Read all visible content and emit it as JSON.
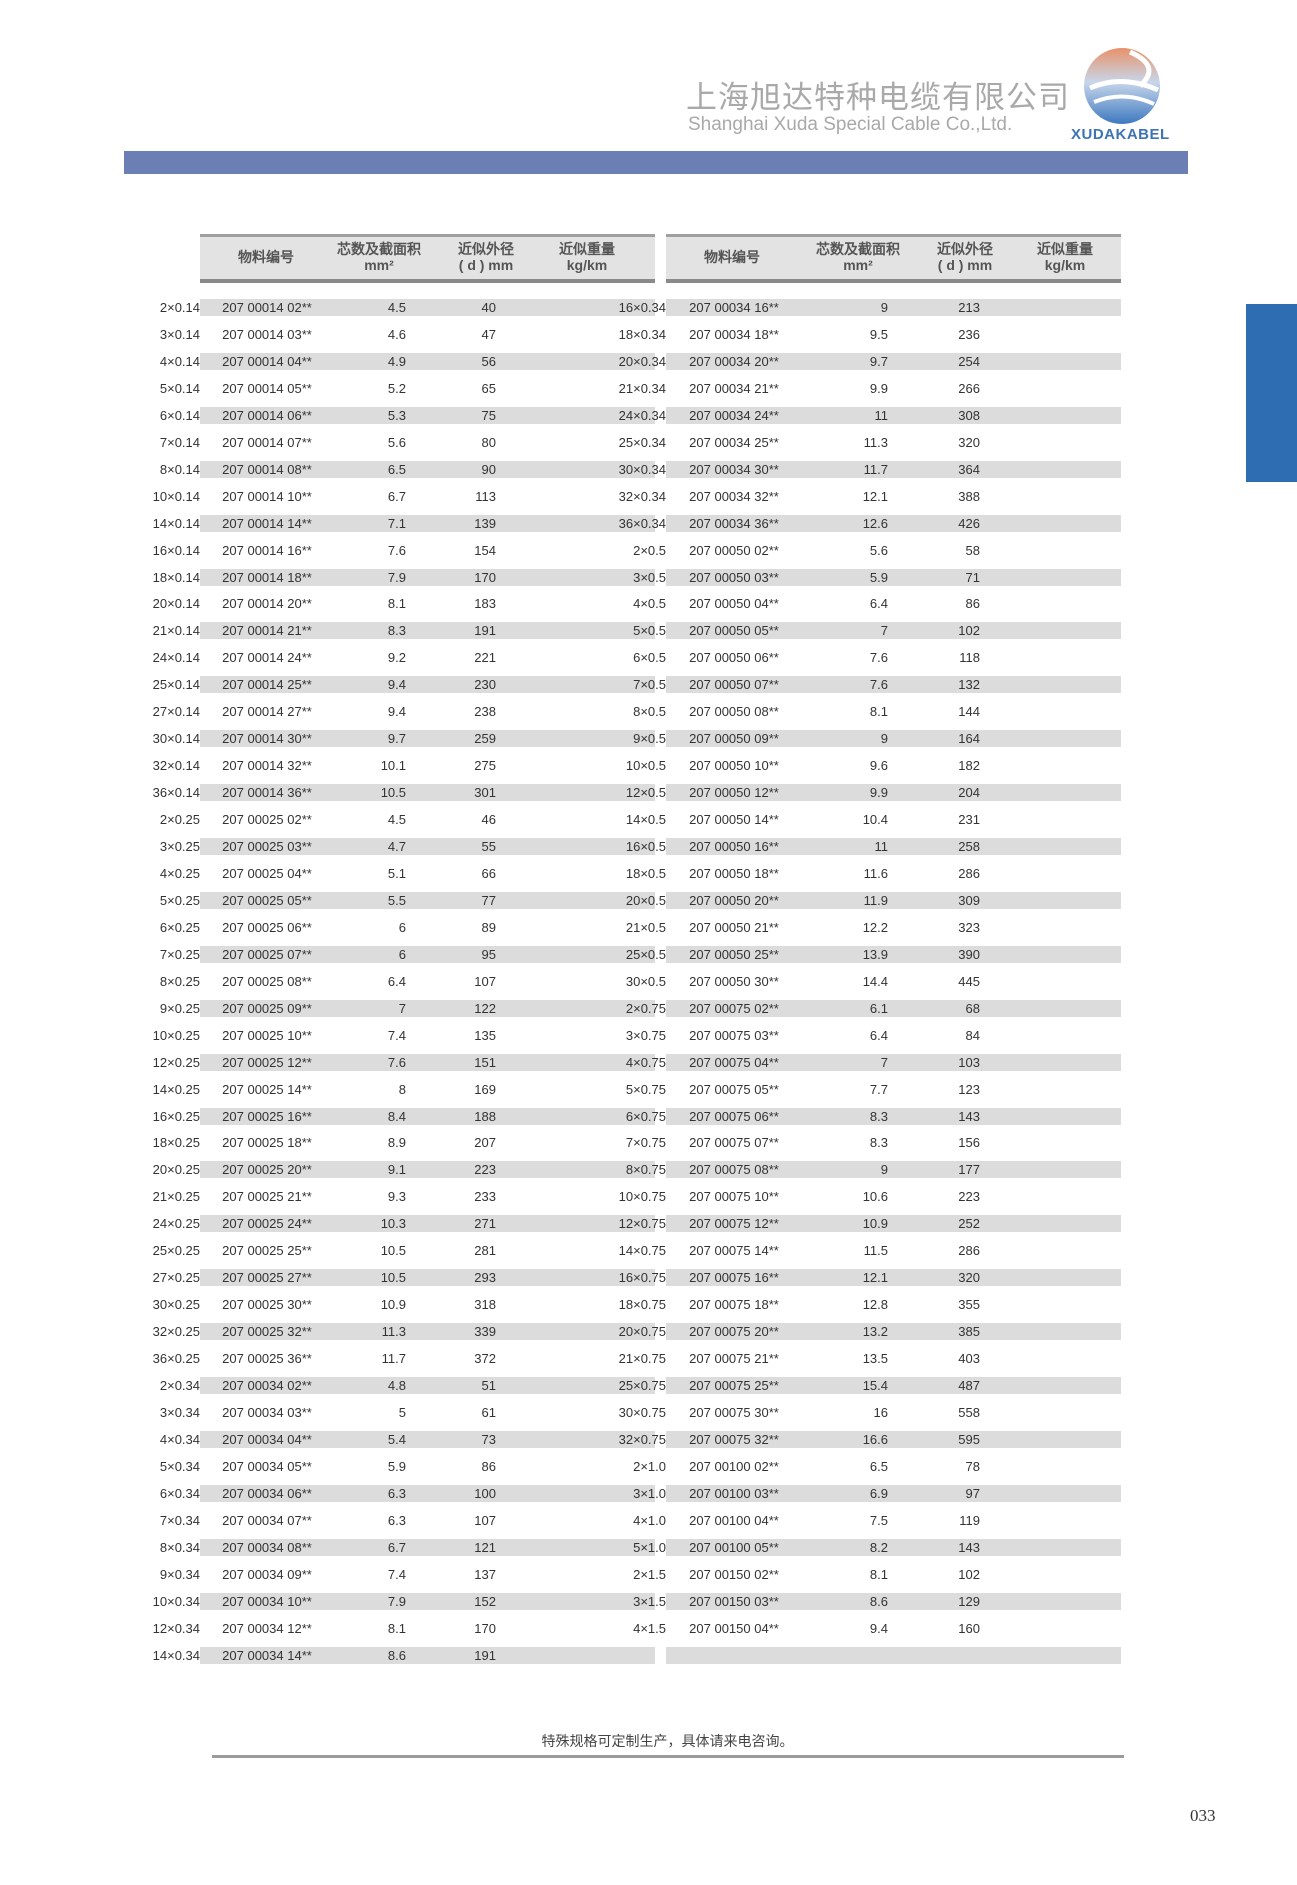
{
  "header": {
    "company_cn": "上海旭达特种电缆有限公司",
    "company_en": "Shanghai Xuda Special Cable Co.,Ltd.",
    "logo_text": "XUDAKABEL",
    "band_color": "#6b7fb5",
    "tab_color": "#2f6db3"
  },
  "columns": {
    "code": "物料编号",
    "spec_l1": "芯数及截面积",
    "spec_l2": "mm²",
    "dia_l1": "近似外径",
    "dia_l2": "( d ) mm",
    "weight_l1": "近似重量",
    "weight_l2": "kg/km"
  },
  "left_table": [
    [
      "207 00014 02**",
      "2×0.14",
      "4.5",
      "40"
    ],
    [
      "207 00014 03**",
      "3×0.14",
      "4.6",
      "47"
    ],
    [
      "207 00014 04**",
      "4×0.14",
      "4.9",
      "56"
    ],
    [
      "207 00014 05**",
      "5×0.14",
      "5.2",
      "65"
    ],
    [
      "207 00014 06**",
      "6×0.14",
      "5.3",
      "75"
    ],
    [
      "207 00014 07**",
      "7×0.14",
      "5.6",
      "80"
    ],
    [
      "207 00014 08**",
      "8×0.14",
      "6.5",
      "90"
    ],
    [
      "207 00014 10**",
      "10×0.14",
      "6.7",
      "113"
    ],
    [
      "207 00014 14**",
      "14×0.14",
      "7.1",
      "139"
    ],
    [
      "207 00014 16**",
      "16×0.14",
      "7.6",
      "154"
    ],
    [
      "207 00014 18**",
      "18×0.14",
      "7.9",
      "170"
    ],
    [
      "207 00014 20**",
      "20×0.14",
      "8.1",
      "183"
    ],
    [
      "207 00014 21**",
      "21×0.14",
      "8.3",
      "191"
    ],
    [
      "207 00014 24**",
      "24×0.14",
      "9.2",
      "221"
    ],
    [
      "207 00014 25**",
      "25×0.14",
      "9.4",
      "230"
    ],
    [
      "207 00014 27**",
      "27×0.14",
      "9.4",
      "238"
    ],
    [
      "207 00014 30**",
      "30×0.14",
      "9.7",
      "259"
    ],
    [
      "207 00014 32**",
      "32×0.14",
      "10.1",
      "275"
    ],
    [
      "207 00014 36**",
      "36×0.14",
      "10.5",
      "301"
    ],
    [
      "207 00025 02**",
      "2×0.25",
      "4.5",
      "46"
    ],
    [
      "207 00025 03**",
      "3×0.25",
      "4.7",
      "55"
    ],
    [
      "207 00025 04**",
      "4×0.25",
      "5.1",
      "66"
    ],
    [
      "207 00025 05**",
      "5×0.25",
      "5.5",
      "77"
    ],
    [
      "207 00025 06**",
      "6×0.25",
      "6",
      "89"
    ],
    [
      "207 00025 07**",
      "7×0.25",
      "6",
      "95"
    ],
    [
      "207 00025 08**",
      "8×0.25",
      "6.4",
      "107"
    ],
    [
      "207 00025 09**",
      "9×0.25",
      "7",
      "122"
    ],
    [
      "207 00025 10**",
      "10×0.25",
      "7.4",
      "135"
    ],
    [
      "207 00025 12**",
      "12×0.25",
      "7.6",
      "151"
    ],
    [
      "207 00025 14**",
      "14×0.25",
      "8",
      "169"
    ],
    [
      "207 00025 16**",
      "16×0.25",
      "8.4",
      "188"
    ],
    [
      "207 00025 18**",
      "18×0.25",
      "8.9",
      "207"
    ],
    [
      "207 00025 20**",
      "20×0.25",
      "9.1",
      "223"
    ],
    [
      "207 00025 21**",
      "21×0.25",
      "9.3",
      "233"
    ],
    [
      "207 00025 24**",
      "24×0.25",
      "10.3",
      "271"
    ],
    [
      "207 00025 25**",
      "25×0.25",
      "10.5",
      "281"
    ],
    [
      "207 00025 27**",
      "27×0.25",
      "10.5",
      "293"
    ],
    [
      "207 00025 30**",
      "30×0.25",
      "10.9",
      "318"
    ],
    [
      "207 00025 32**",
      "32×0.25",
      "11.3",
      "339"
    ],
    [
      "207 00025 36**",
      "36×0.25",
      "11.7",
      "372"
    ],
    [
      "207 00034 02**",
      "2×0.34",
      "4.8",
      "51"
    ],
    [
      "207 00034 03**",
      "3×0.34",
      "5",
      "61"
    ],
    [
      "207 00034 04**",
      "4×0.34",
      "5.4",
      "73"
    ],
    [
      "207 00034 05**",
      "5×0.34",
      "5.9",
      "86"
    ],
    [
      "207 00034 06**",
      "6×0.34",
      "6.3",
      "100"
    ],
    [
      "207 00034 07**",
      "7×0.34",
      "6.3",
      "107"
    ],
    [
      "207 00034 08**",
      "8×0.34",
      "6.7",
      "121"
    ],
    [
      "207 00034 09**",
      "9×0.34",
      "7.4",
      "137"
    ],
    [
      "207 00034 10**",
      "10×0.34",
      "7.9",
      "152"
    ],
    [
      "207 00034 12**",
      "12×0.34",
      "8.1",
      "170"
    ],
    [
      "207 00034 14**",
      "14×0.34",
      "8.6",
      "191"
    ]
  ],
  "right_table": [
    [
      "207 00034 16**",
      "16×0.34",
      "9",
      "213"
    ],
    [
      "207 00034 18**",
      "18×0.34",
      "9.5",
      "236"
    ],
    [
      "207 00034 20**",
      "20×0.34",
      "9.7",
      "254"
    ],
    [
      "207 00034 21**",
      "21×0.34",
      "9.9",
      "266"
    ],
    [
      "207 00034 24**",
      "24×0.34",
      "11",
      "308"
    ],
    [
      "207 00034 25**",
      "25×0.34",
      "11.3",
      "320"
    ],
    [
      "207 00034 30**",
      "30×0.34",
      "11.7",
      "364"
    ],
    [
      "207 00034 32**",
      "32×0.34",
      "12.1",
      "388"
    ],
    [
      "207 00034 36**",
      "36×0.34",
      "12.6",
      "426"
    ],
    [
      "207 00050 02**",
      "2×0.5",
      "5.6",
      "58"
    ],
    [
      "207 00050 03**",
      "3×0.5",
      "5.9",
      "71"
    ],
    [
      "207 00050 04**",
      "4×0.5",
      "6.4",
      "86"
    ],
    [
      "207 00050 05**",
      "5×0.5",
      "7",
      "102"
    ],
    [
      "207 00050 06**",
      "6×0.5",
      "7.6",
      "118"
    ],
    [
      "207 00050 07**",
      "7×0.5",
      "7.6",
      "132"
    ],
    [
      "207 00050 08**",
      "8×0.5",
      "8.1",
      "144"
    ],
    [
      "207 00050 09**",
      "9×0.5",
      "9",
      "164"
    ],
    [
      "207 00050 10**",
      "10×0.5",
      "9.6",
      "182"
    ],
    [
      "207 00050 12**",
      "12×0.5",
      "9.9",
      "204"
    ],
    [
      "207 00050 14**",
      "14×0.5",
      "10.4",
      "231"
    ],
    [
      "207 00050 16**",
      "16×0.5",
      "11",
      "258"
    ],
    [
      "207 00050 18**",
      "18×0.5",
      "11.6",
      "286"
    ],
    [
      "207 00050 20**",
      "20×0.5",
      "11.9",
      "309"
    ],
    [
      "207 00050 21**",
      "21×0.5",
      "12.2",
      "323"
    ],
    [
      "207 00050 25**",
      "25×0.5",
      "13.9",
      "390"
    ],
    [
      "207 00050 30**",
      "30×0.5",
      "14.4",
      "445"
    ],
    [
      "207 00075 02**",
      "2×0.75",
      "6.1",
      "68"
    ],
    [
      "207 00075 03**",
      "3×0.75",
      "6.4",
      "84"
    ],
    [
      "207 00075 04**",
      "4×0.75",
      "7",
      "103"
    ],
    [
      "207 00075 05**",
      "5×0.75",
      "7.7",
      "123"
    ],
    [
      "207 00075 06**",
      "6×0.75",
      "8.3",
      "143"
    ],
    [
      "207 00075 07**",
      "7×0.75",
      "8.3",
      "156"
    ],
    [
      "207 00075 08**",
      "8×0.75",
      "9",
      "177"
    ],
    [
      "207 00075 10**",
      "10×0.75",
      "10.6",
      "223"
    ],
    [
      "207 00075 12**",
      "12×0.75",
      "10.9",
      "252"
    ],
    [
      "207 00075 14**",
      "14×0.75",
      "11.5",
      "286"
    ],
    [
      "207 00075 16**",
      "16×0.75",
      "12.1",
      "320"
    ],
    [
      "207 00075 18**",
      "18×0.75",
      "12.8",
      "355"
    ],
    [
      "207 00075 20**",
      "20×0.75",
      "13.2",
      "385"
    ],
    [
      "207 00075 21**",
      "21×0.75",
      "13.5",
      "403"
    ],
    [
      "207 00075 25**",
      "25×0.75",
      "15.4",
      "487"
    ],
    [
      "207 00075 30**",
      "30×0.75",
      "16",
      "558"
    ],
    [
      "207 00075 32**",
      "32×0.75",
      "16.6",
      "595"
    ],
    [
      "207 00100 02**",
      "2×1.0",
      "6.5",
      "78"
    ],
    [
      "207 00100 03**",
      "3×1.0",
      "6.9",
      "97"
    ],
    [
      "207 00100 04**",
      "4×1.0",
      "7.5",
      "119"
    ],
    [
      "207 00100 05**",
      "5×1.0",
      "8.2",
      "143"
    ],
    [
      "207 00150 02**",
      "2×1.5",
      "8.1",
      "102"
    ],
    [
      "207 00150 03**",
      "3×1.5",
      "8.6",
      "129"
    ],
    [
      "207 00150 04**",
      "4×1.5",
      "9.4",
      "160"
    ]
  ],
  "footer": {
    "note": "特殊规格可定制生产，具体请来电咨询。",
    "page_number": "033"
  }
}
